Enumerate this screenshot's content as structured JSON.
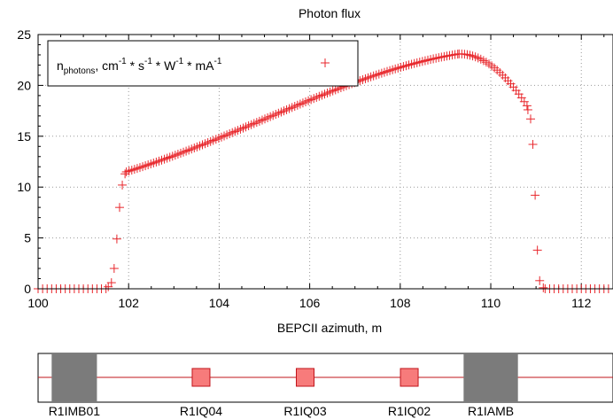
{
  "chart_data": {
    "type": "scatter",
    "title": "Photon flux",
    "xlabel": "BEPCII azimuth, m",
    "ylabel": "",
    "xlim": [
      100,
      112.7
    ],
    "ylim": [
      0,
      25
    ],
    "xticks": [
      100,
      102,
      104,
      106,
      108,
      110,
      112
    ],
    "yticks": [
      0,
      5,
      10,
      15,
      20,
      25
    ],
    "grid": true,
    "legend_position": "top-left",
    "series": [
      {
        "name": "n_photons, cm^-1 * s^-1 * W^-1 * mA^-1",
        "legend": {
          "base": "n",
          "sub": "photons",
          "rest": ", cm",
          "sup1": "-1",
          "sep1": " * s",
          "sup2": "-1",
          "sep2": " * W",
          "sup3": "-1",
          "sep3": " * mA",
          "sup4": "-1"
        },
        "color": "#e8262b",
        "marker": "plus",
        "segments": [
          {
            "x_start": 100.0,
            "x_end": 101.5,
            "step": 0.1,
            "y": 0
          },
          {
            "x_start": 101.95,
            "x_end": 109.3,
            "step": 0.06,
            "y_start": 11.5,
            "y_peak": 23.1
          },
          {
            "x_start": 109.3,
            "x_end": 110.8,
            "step": 0.06,
            "y_start": 23.1,
            "y_end": 18.0
          },
          {
            "x_start": 111.2,
            "x_end": 112.6,
            "step": 0.1,
            "y": 0
          }
        ],
        "points": [
          [
            101.55,
            0.2
          ],
          [
            101.62,
            0.6
          ],
          [
            101.68,
            2.0
          ],
          [
            101.74,
            4.9
          ],
          [
            101.8,
            8.0
          ],
          [
            101.86,
            10.2
          ],
          [
            101.92,
            11.3
          ],
          [
            110.82,
            17.6
          ],
          [
            110.88,
            16.7
          ],
          [
            110.93,
            14.2
          ],
          [
            110.98,
            9.2
          ],
          [
            111.03,
            3.8
          ],
          [
            111.08,
            0.8
          ],
          [
            111.16,
            0.1
          ]
        ]
      }
    ]
  },
  "lattice": {
    "elements": [
      {
        "name": "R1IMB01",
        "type": "dipole",
        "x_start": 100.3,
        "x_end": 101.3
      },
      {
        "name": "R1IQ04",
        "type": "quadrupole",
        "x": 103.6
      },
      {
        "name": "R1IQ03",
        "type": "quadrupole",
        "x": 105.9
      },
      {
        "name": "R1IQ02",
        "type": "quadrupole",
        "x": 108.2
      },
      {
        "name": "R1IAMB",
        "type": "dipole",
        "x_start": 109.4,
        "x_end": 110.6
      }
    ],
    "colors": {
      "dipole": "#7b7b7b",
      "quadrupole": "#f77b7b",
      "beamline": "#c0141b"
    }
  }
}
